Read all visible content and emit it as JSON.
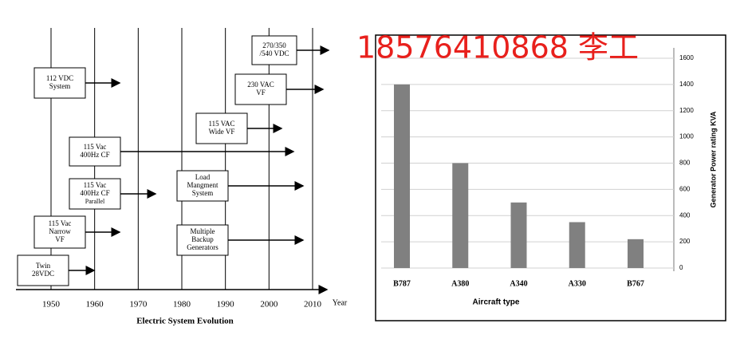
{
  "timeline": {
    "title": "Electric System Evolution",
    "axis_label": "Year",
    "ticks": [
      1950,
      1960,
      1970,
      1980,
      1990,
      2000,
      2010
    ],
    "boxes": [
      {
        "lines": [
          "270/350",
          "/540 VDC"
        ]
      },
      {
        "lines": [
          "112 VDC",
          "System"
        ]
      },
      {
        "lines": [
          "230 VAC",
          "VF"
        ]
      },
      {
        "lines": [
          "115 VAC",
          "Wide VF"
        ]
      },
      {
        "lines": [
          "115 Vac",
          "400Hz CF"
        ]
      },
      {
        "lines": [
          "115 Vac",
          "400Hz CF",
          "Parallel"
        ]
      },
      {
        "lines": [
          "Load",
          "Mangment",
          "System"
        ]
      },
      {
        "lines": [
          "115 Vac",
          "Narrow",
          "VF"
        ]
      },
      {
        "lines": [
          "Multiple",
          "Backup",
          "Generators"
        ]
      },
      {
        "lines": [
          "Twin",
          "28VDC"
        ]
      }
    ]
  },
  "watermark": "18576410868 李工",
  "chart_data": {
    "type": "bar",
    "x_label": "Aircraft type",
    "y_label": "Generator Power rating KVA",
    "categories": [
      "B787",
      "A380",
      "A340",
      "A330",
      "B767"
    ],
    "values": [
      1400,
      800,
      500,
      350,
      220
    ],
    "color": "#808080",
    "ylim": [
      0,
      1600
    ],
    "yticks": [
      0,
      200,
      400,
      600,
      800,
      1000,
      1200,
      1400,
      1600
    ],
    "grid": true
  }
}
